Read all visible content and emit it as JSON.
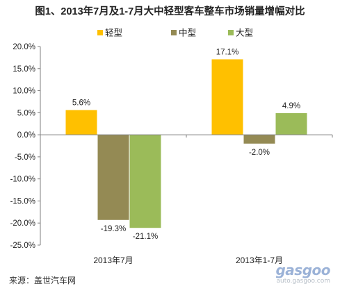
{
  "chart_data": {
    "type": "bar",
    "title": "图1、2013年7月及1-7月大中轻型客车整车市场销量增幅对比",
    "categories": [
      "2013年7月",
      "2013年1-7月"
    ],
    "series": [
      {
        "name": "轻型",
        "color": "#FFC000",
        "values": [
          5.6,
          17.1
        ],
        "labels": [
          "5.6%",
          "17.1%"
        ]
      },
      {
        "name": "中型",
        "color": "#948A54",
        "values": [
          -19.3,
          -2.0
        ],
        "labels": [
          "-19.3%",
          "-2.0%"
        ]
      },
      {
        "name": "大型",
        "color": "#9BBB59",
        "values": [
          -21.1,
          4.9
        ],
        "labels": [
          "-21.1%",
          "4.9%"
        ]
      }
    ],
    "ylim": [
      -25,
      20
    ],
    "yticks": [
      20,
      15,
      10,
      5,
      0,
      -5,
      -10,
      -15,
      -20,
      -25
    ],
    "ytick_labels": [
      "20.0%",
      "15.0%",
      "10.0%",
      "5.0%",
      "0.0%",
      "-5.0%",
      "-10.0%",
      "-15.0%",
      "-20.0%",
      "-25.0%"
    ],
    "xlabel": "",
    "ylabel": "",
    "legend_position": "top",
    "grid": false
  },
  "source": "来源：盖世汽车网",
  "watermark": {
    "logo": "gasgoo",
    "url": "auto.gasgoo.com"
  }
}
